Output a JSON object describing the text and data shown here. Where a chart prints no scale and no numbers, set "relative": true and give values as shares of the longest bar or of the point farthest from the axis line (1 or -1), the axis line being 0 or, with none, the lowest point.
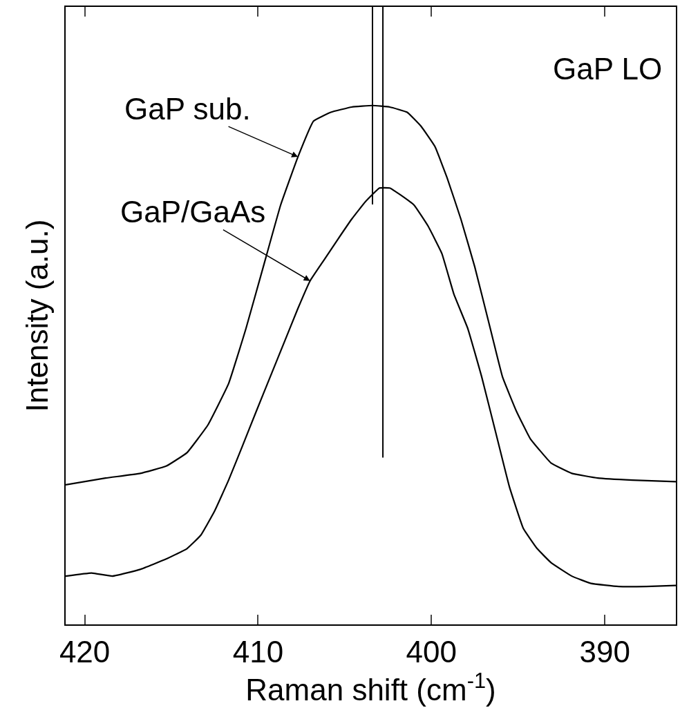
{
  "chart_data": {
    "type": "line",
    "relative": true,
    "xlabel": "Raman shift (cm$^{-1}$)",
    "ylabel": "Intensity (a.u.)",
    "xlim": [
      421.1,
      385.9
    ],
    "xticks": [
      420,
      410,
      400,
      390
    ],
    "marker": "none",
    "line_style": "solid",
    "series": [
      {
        "color": "#000000",
        "x": [
          421.1,
          418.8,
          416.8,
          415.3,
          414.1,
          412.9,
          411.7,
          410.7,
          409.7,
          408.7,
          407.7,
          406.8,
          405.8,
          404.6,
          403.4,
          402.4,
          401.4,
          400.6,
          399.8,
          399.1,
          398.3,
          397.5,
          396.7,
          395.9,
          395.1,
          394.3,
          393.1,
          391.9,
          390.4,
          388.4,
          385.9
        ],
        "values": [
          0.269,
          0.282,
          0.291,
          0.305,
          0.331,
          0.384,
          0.464,
          0.57,
          0.689,
          0.808,
          0.901,
          0.97,
          0.987,
          0.997,
          1,
          0.997,
          0.987,
          0.96,
          0.921,
          0.861,
          0.781,
          0.689,
          0.583,
          0.477,
          0.411,
          0.358,
          0.311,
          0.291,
          0.282,
          0.278,
          0.275
        ]
      },
      {
        "color": "#000000",
        "x": [
          421.1,
          419.6,
          418.4,
          416.8,
          415.3,
          414.1,
          413.3,
          412.5,
          411.7,
          410.9,
          410.1,
          409.3,
          408.5,
          407.7,
          407.0,
          406.2,
          405.4,
          404.6,
          403.8,
          403.0,
          402.4,
          401.8,
          401.0,
          400.2,
          399.4,
          398.7,
          397.9,
          397.1,
          396.3,
          395.5,
          394.7,
          393.9,
          393.1,
          391.9,
          390.8,
          389.2,
          387.6,
          385.9
        ],
        "values": [
          0.093,
          0.099,
          0.093,
          0.106,
          0.126,
          0.146,
          0.172,
          0.219,
          0.278,
          0.344,
          0.411,
          0.477,
          0.543,
          0.609,
          0.662,
          0.702,
          0.742,
          0.781,
          0.815,
          0.841,
          0.841,
          0.828,
          0.808,
          0.768,
          0.715,
          0.636,
          0.57,
          0.477,
          0.371,
          0.265,
          0.185,
          0.146,
          0.119,
          0.093,
          0.079,
          0.073,
          0.073,
          0.075
        ]
      }
    ],
    "ref_lines": [
      {
        "axis": "x",
        "value": 403.4,
        "color": "#000000"
      },
      {
        "axis": "x",
        "value": 402.8,
        "color": "#000000"
      }
    ],
    "annotations": [
      {
        "text": "GaP sub.",
        "x": 407.7,
        "y": 0.901
      },
      {
        "text": "GaP/GaAs",
        "x": 407.0,
        "y": 0.662
      },
      "GaP LO"
    ]
  }
}
